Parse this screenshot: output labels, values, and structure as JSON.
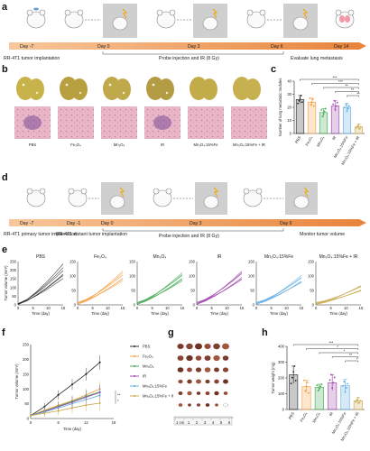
{
  "panels": {
    "a": "a",
    "b": "b",
    "c": "c",
    "d": "d",
    "e": "e",
    "f": "f",
    "g": "g",
    "h": "h"
  },
  "timeline_a": {
    "days": [
      "Day -7",
      "Day 0",
      "Day 3",
      "Day 6",
      "Day 14"
    ],
    "labels": [
      "RR-4T1 tumor implantation",
      "Probe injection and IR (8 Gy)",
      "Evaluate lung metastasis"
    ]
  },
  "timeline_d": {
    "days": [
      "Day -7",
      "Day -1",
      "Day 0",
      "Day 3",
      "Day 6"
    ],
    "labels": [
      "RR-4T1 primary tumor implantation",
      "RR-4T1 distant tumor implantation",
      "Probe injection and IR (8 Gy)",
      "Monitor tumor volume"
    ]
  },
  "groups_b": [
    "PBS",
    "Fe3O4",
    "Mn3O4",
    "IR",
    "Mn3O4:15%Fe",
    "Mn3O4:15%Fe + IR"
  ],
  "groups_h": [
    "PBS",
    "Fe3O4",
    "Mn3O4",
    "IR",
    "Mn3O4:15%Fe",
    "Mn3O4:15%Fe + IR"
  ],
  "scale_g": [
    "1 cm",
    "1",
    "2",
    "3",
    "4",
    "5",
    "6"
  ],
  "colors": {
    "PBS": "#222222",
    "Fe3O4": "#f39a3c",
    "Mn3O4": "#3aa64a",
    "IR": "#9b3fa8",
    "Mn3O4:15%Fe": "#5aa8e0",
    "Mn3O4:15%Fe + IR": "#c8a64a"
  },
  "chart_data": [
    {
      "id": "c",
      "type": "bar",
      "ylabel": "Number of lung metastatic nodules",
      "ylim": [
        0,
        40
      ],
      "yticks": [
        0,
        10,
        20,
        30,
        40
      ],
      "categories": [
        "PBS",
        "Fe3O4",
        "Mn3O4",
        "IR",
        "Mn3O4:15%Fe",
        "Mn3O4:15%Fe + IR"
      ],
      "values": [
        26,
        24,
        16,
        21,
        20,
        5
      ],
      "errors": [
        3,
        3,
        3,
        4,
        3,
        2
      ],
      "significance": [
        "***",
        "***",
        "**",
        "**",
        "**"
      ]
    },
    {
      "id": "e",
      "type": "line",
      "xlabel": "Time (day)",
      "ylabel": "Tumor volume (mm³)",
      "xticks": [
        0,
        5,
        10,
        15
      ],
      "panels": [
        {
          "title": "PBS",
          "ylim": [
            0,
            250
          ],
          "yticks": [
            0,
            50,
            100,
            150,
            200,
            250
          ],
          "final": [
            240,
            215,
            195,
            180,
            170,
            150
          ]
        },
        {
          "title": "Fe3O4",
          "ylim": [
            0,
            150
          ],
          "yticks": [
            0,
            50,
            100,
            150
          ],
          "final": [
            120,
            110,
            100,
            95,
            90,
            80
          ]
        },
        {
          "title": "Mn3O4",
          "ylim": [
            0,
            150
          ],
          "yticks": [
            0,
            50,
            100,
            150
          ],
          "final": [
            115,
            105,
            100,
            95,
            88,
            80
          ]
        },
        {
          "title": "IR",
          "ylim": [
            0,
            150
          ],
          "yticks": [
            0,
            50,
            100,
            150
          ],
          "final": [
            120,
            112,
            105,
            98,
            90,
            85
          ]
        },
        {
          "title": "Mn3O4:15%Fe",
          "ylim": [
            0,
            150
          ],
          "yticks": [
            0,
            50,
            100,
            150
          ],
          "final": [
            105,
            95,
            90,
            85,
            80,
            75
          ]
        },
        {
          "title": "Mn3O4:15%Fe + IR",
          "ylim": [
            0,
            150
          ],
          "yticks": [
            0,
            50,
            100,
            150
          ],
          "final": [
            70,
            65,
            60,
            55,
            50,
            45
          ]
        }
      ]
    },
    {
      "id": "f",
      "type": "line",
      "xlabel": "Time (day)",
      "ylabel": "Tumor volume (mm³)",
      "xlim": [
        0,
        18
      ],
      "ylim": [
        0,
        250
      ],
      "xticks": [
        0,
        6,
        12,
        18
      ],
      "yticks": [
        0,
        50,
        100,
        150,
        200,
        250
      ],
      "x": [
        0,
        3,
        6,
        9,
        12,
        15
      ],
      "series": [
        {
          "name": "PBS",
          "values": [
            10,
            40,
            80,
            115,
            150,
            190
          ]
        },
        {
          "name": "Fe3O4",
          "values": [
            10,
            28,
            45,
            60,
            80,
            100
          ]
        },
        {
          "name": "Mn3O4",
          "values": [
            10,
            25,
            42,
            58,
            75,
            90
          ]
        },
        {
          "name": "IR",
          "values": [
            10,
            24,
            40,
            55,
            72,
            88
          ]
        },
        {
          "name": "Mn3O4:15%Fe",
          "values": [
            10,
            22,
            36,
            50,
            64,
            78
          ]
        },
        {
          "name": "Mn3O4:15%Fe + IR",
          "values": [
            10,
            18,
            26,
            36,
            45,
            52
          ]
        }
      ],
      "significance": [
        "**",
        "*"
      ]
    },
    {
      "id": "h",
      "type": "bar",
      "ylabel": "Tumor weight (mg)",
      "ylim": [
        0,
        400
      ],
      "yticks": [
        0,
        100,
        200,
        300,
        400
      ],
      "categories": [
        "PBS",
        "Fe3O4",
        "Mn3O4",
        "IR",
        "Mn3O4:15%Fe",
        "Mn3O4:15%Fe + IR"
      ],
      "values": [
        220,
        145,
        140,
        170,
        150,
        55
      ],
      "errors": [
        55,
        40,
        20,
        50,
        40,
        20
      ],
      "significance": [
        "***",
        "*",
        "*",
        "**",
        "*"
      ]
    }
  ]
}
